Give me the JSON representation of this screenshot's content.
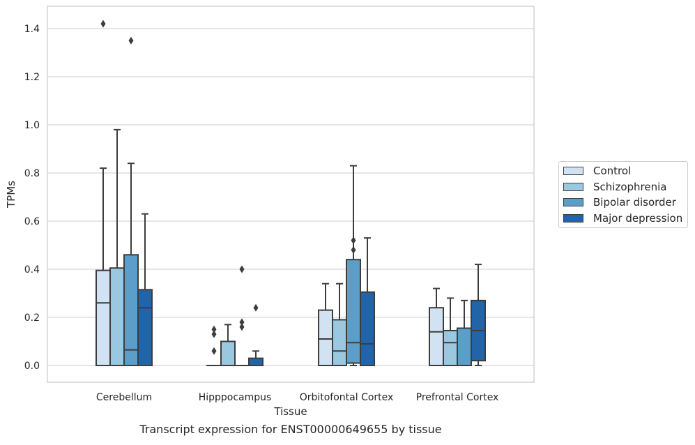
{
  "chart_data": {
    "type": "boxplot",
    "caption": "Transcript expression for ENST00000649655 by tissue",
    "xlabel": "Tissue",
    "ylabel": "TPMs",
    "ylim": [
      -0.07,
      1.49
    ],
    "yticks": [
      0.0,
      0.2,
      0.4,
      0.6,
      0.8,
      1.0,
      1.2,
      1.4
    ],
    "ytick_labels": [
      "0.0",
      "0.2",
      "0.4",
      "0.6",
      "0.8",
      "1.0",
      "1.2",
      "1.4"
    ],
    "grid": true,
    "legend_position": "right",
    "categories": [
      "Cerebellum",
      "Hipppocampus",
      "Orbitofontal Cortex",
      "Prefrontal Cortex"
    ],
    "series": [
      {
        "name": "Control",
        "color": "#d1e2f2",
        "boxes": [
          {
            "whisker_low": 0.0,
            "q1": 0.0,
            "median": 0.26,
            "q3": 0.395,
            "whisker_high": 0.82,
            "outliers": [
              1.42
            ]
          },
          {
            "whisker_low": 0.0,
            "q1": 0.0,
            "median": 0.0,
            "q3": 0.0,
            "whisker_high": 0.0,
            "outliers": [
              0.06,
              0.13,
              0.15
            ]
          },
          {
            "whisker_low": 0.0,
            "q1": 0.0,
            "median": 0.11,
            "q3": 0.23,
            "whisker_high": 0.34,
            "outliers": []
          },
          {
            "whisker_low": 0.0,
            "q1": 0.0,
            "median": 0.14,
            "q3": 0.24,
            "whisker_high": 0.32,
            "outliers": []
          }
        ]
      },
      {
        "name": "Schizophrenia",
        "color": "#9ac8e0",
        "boxes": [
          {
            "whisker_low": 0.0,
            "q1": 0.0,
            "median": 0.0,
            "q3": 0.405,
            "whisker_high": 0.98,
            "outliers": []
          },
          {
            "whisker_low": 0.0,
            "q1": 0.0,
            "median": 0.0,
            "q3": 0.1,
            "whisker_high": 0.17,
            "outliers": []
          },
          {
            "whisker_low": 0.0,
            "q1": 0.0,
            "median": 0.06,
            "q3": 0.19,
            "whisker_high": 0.34,
            "outliers": []
          },
          {
            "whisker_low": 0.0,
            "q1": 0.0,
            "median": 0.095,
            "q3": 0.145,
            "whisker_high": 0.28,
            "outliers": []
          }
        ]
      },
      {
        "name": "Bipolar disorder",
        "color": "#5a9ec9",
        "boxes": [
          {
            "whisker_low": 0.0,
            "q1": 0.0,
            "median": 0.065,
            "q3": 0.46,
            "whisker_high": 0.84,
            "outliers": [
              1.35
            ]
          },
          {
            "whisker_low": 0.0,
            "q1": 0.0,
            "median": 0.0,
            "q3": 0.0,
            "whisker_high": 0.0,
            "outliers": [
              0.16,
              0.18,
              0.4
            ]
          },
          {
            "whisker_low": 0.0,
            "q1": 0.01,
            "median": 0.095,
            "q3": 0.44,
            "whisker_high": 0.83,
            "outliers": [
              0.48,
              0.52
            ]
          },
          {
            "whisker_low": 0.0,
            "q1": 0.0,
            "median": 0.0,
            "q3": 0.155,
            "whisker_high": 0.27,
            "outliers": []
          }
        ]
      },
      {
        "name": "Major depression",
        "color": "#2264a8",
        "boxes": [
          {
            "whisker_low": 0.0,
            "q1": 0.0,
            "median": 0.24,
            "q3": 0.315,
            "whisker_high": 0.63,
            "outliers": []
          },
          {
            "whisker_low": 0.0,
            "q1": 0.0,
            "median": 0.0,
            "q3": 0.03,
            "whisker_high": 0.06,
            "outliers": [
              0.24
            ]
          },
          {
            "whisker_low": 0.0,
            "q1": 0.0,
            "median": 0.09,
            "q3": 0.305,
            "whisker_high": 0.53,
            "outliers": []
          },
          {
            "whisker_low": 0.0,
            "q1": 0.02,
            "median": 0.145,
            "q3": 0.27,
            "whisker_high": 0.42,
            "outliers": []
          }
        ]
      }
    ]
  }
}
